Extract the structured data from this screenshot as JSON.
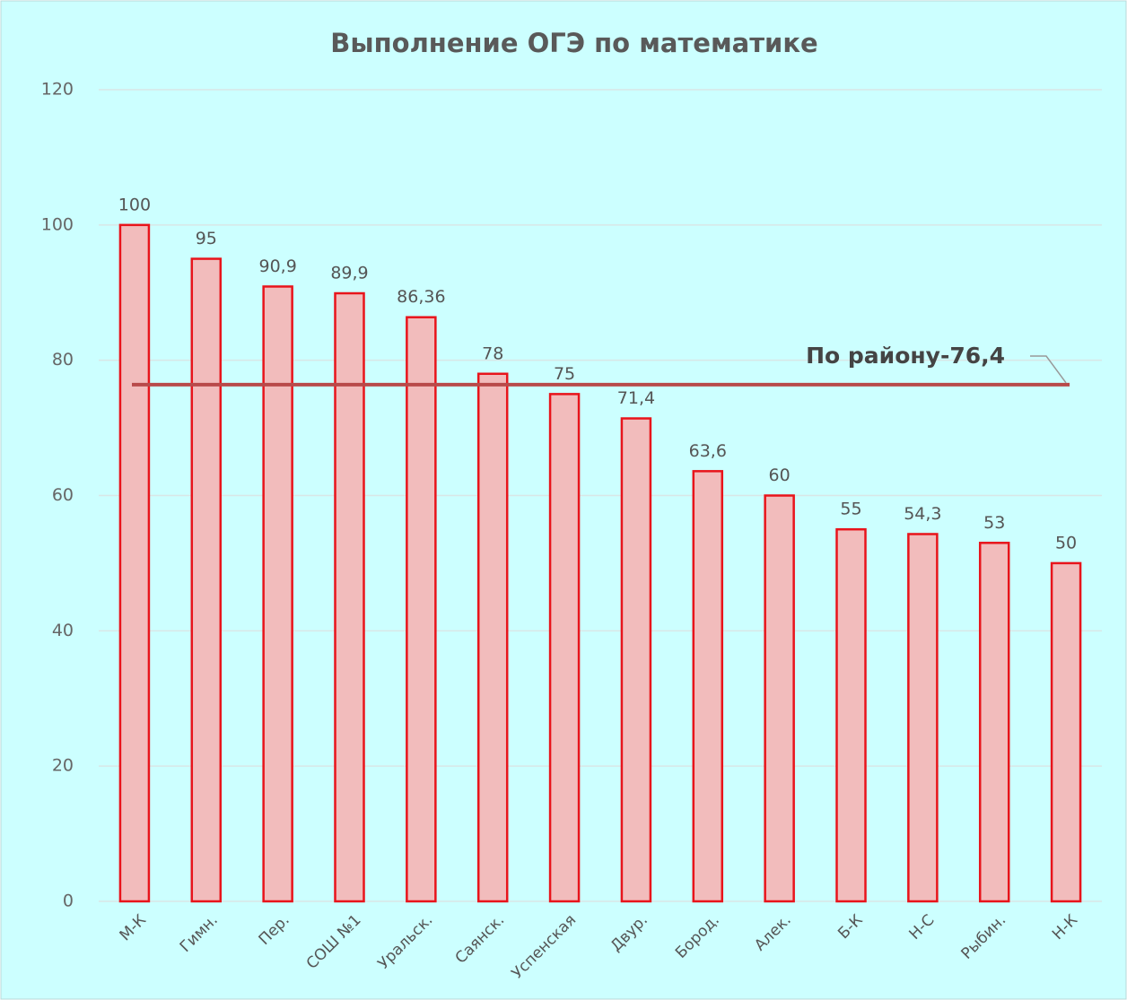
{
  "chart_data": {
    "type": "bar",
    "title": "Выполнение ОГЭ по математике",
    "categories": [
      "М-К",
      "Гимн.",
      "Пер.",
      "СОШ №1",
      "Уральск.",
      "Саянск.",
      "Успенская",
      "Двур.",
      "Бород.",
      "Алек.",
      "Б-К",
      "Н-С",
      "Рыбин.",
      "Н-К"
    ],
    "values": [
      100,
      95,
      90.9,
      89.9,
      86.36,
      78,
      75,
      71.4,
      63.6,
      60,
      55,
      54.3,
      53,
      50
    ],
    "value_labels": [
      "100",
      "95",
      "90,9",
      "89,9",
      "86,36",
      "78",
      "75",
      "71,4",
      "63,6",
      "60",
      "55",
      "54,3",
      "53",
      "50"
    ],
    "color": "#f2bcbc",
    "edge_color": "#e8141b",
    "ylim": [
      0,
      120
    ],
    "yticks": [
      0,
      20,
      40,
      60,
      80,
      100,
      120
    ],
    "grid": true,
    "reference_line": {
      "value": 76.4,
      "label": "По району-76,4",
      "color": "#b84a4a"
    }
  }
}
